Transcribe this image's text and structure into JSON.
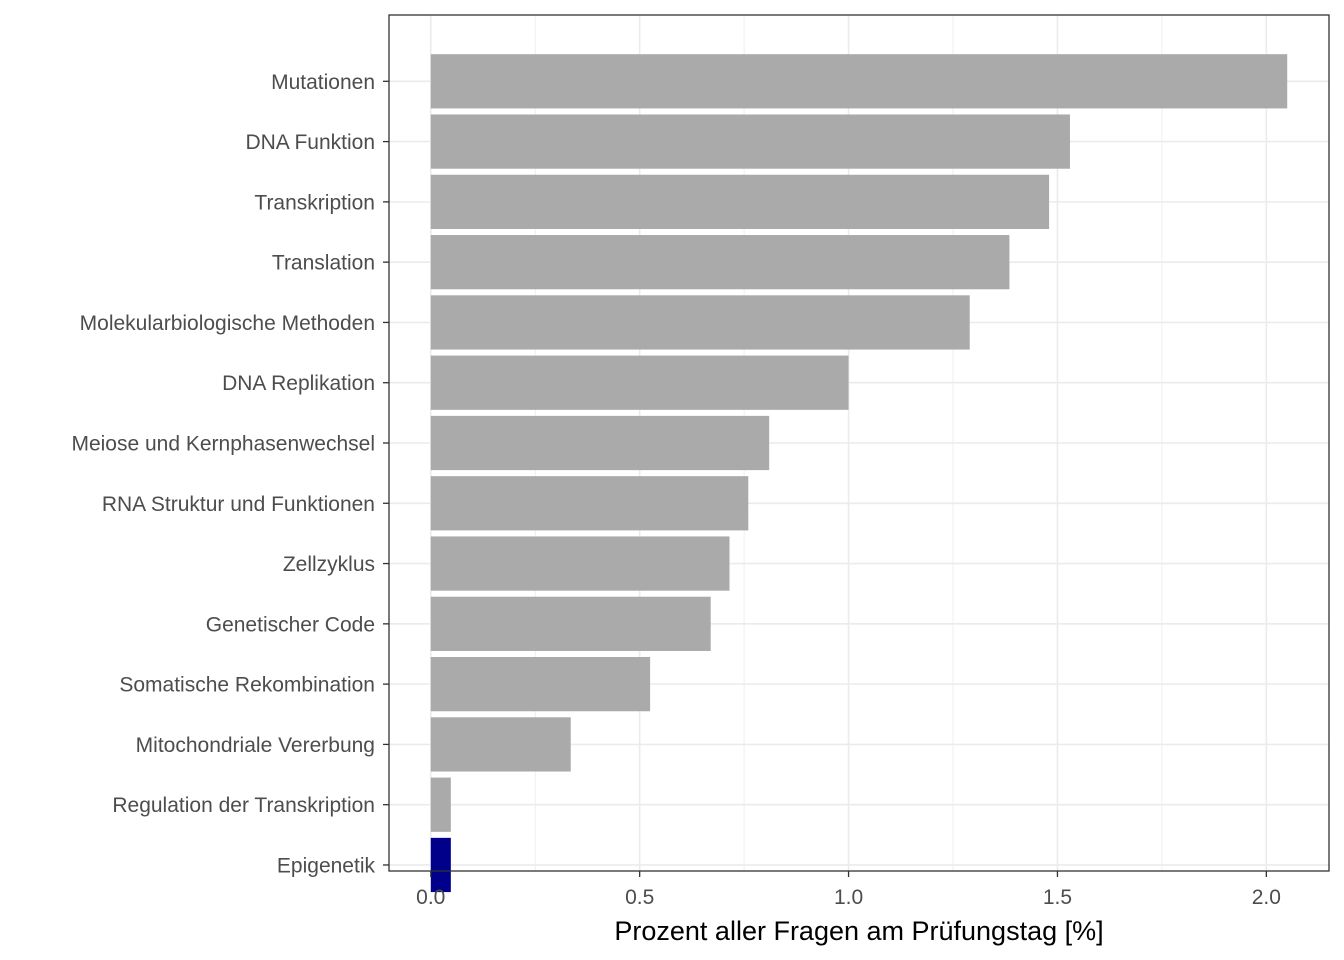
{
  "chart_data": {
    "type": "bar",
    "orientation": "horizontal",
    "categories": [
      "Mutationen",
      "DNA Funktion",
      "Transkription",
      "Translation",
      "Molekularbiologische Methoden",
      "DNA Replikation",
      "Meiose und Kernphasenwechsel",
      "RNA Struktur und Funktionen",
      "Zellzyklus",
      "Genetischer Code",
      "Somatische Rekombination",
      "Mitochondriale Vererbung",
      "Regulation der Transkription",
      "Epigenetik"
    ],
    "values": [
      2.05,
      1.53,
      1.48,
      1.385,
      1.29,
      1.0,
      0.81,
      0.76,
      0.715,
      0.67,
      0.525,
      0.335,
      0.048,
      0.048
    ],
    "highlight": "Epigenetik",
    "colors": {
      "bar": "#aaaaaa",
      "highlight": "#00008b",
      "grid": "#ebebeb",
      "panel_border": "#333333"
    },
    "xlabel": "Prozent aller Fragen am Prüfungstag [%]",
    "ylabel": "",
    "xlim": [
      -0.1,
      2.15
    ],
    "xticks": [
      0.0,
      0.5,
      1.0,
      1.5,
      2.0
    ],
    "xtick_labels": [
      "0.0",
      "0.5",
      "1.0",
      "1.5",
      "2.0"
    ],
    "grid": true,
    "legend": "none"
  }
}
